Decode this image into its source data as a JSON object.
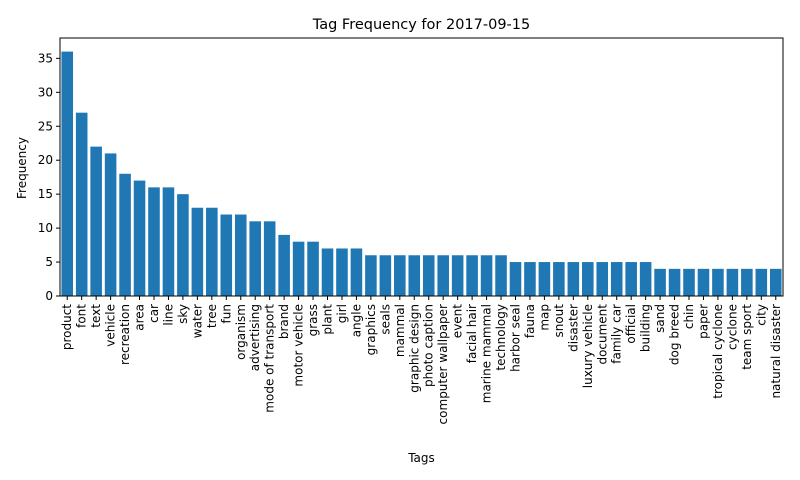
{
  "chart_data": {
    "type": "bar",
    "title": "Tag Frequency for 2017-09-15",
    "xlabel": "Tags",
    "ylabel": "Frequency",
    "ylim": [
      0,
      38
    ],
    "yticks": [
      0,
      5,
      10,
      15,
      20,
      25,
      30,
      35
    ],
    "grid": false,
    "bar_color": "#1f77b4",
    "categories": [
      "product",
      "font",
      "text",
      "vehicle",
      "recreation",
      "area",
      "car",
      "line",
      "sky",
      "water",
      "tree",
      "fun",
      "organism",
      "advertising",
      "mode of transport",
      "brand",
      "motor vehicle",
      "grass",
      "plant",
      "girl",
      "angle",
      "graphics",
      "seals",
      "mammal",
      "graphic design",
      "photo caption",
      "computer wallpaper",
      "event",
      "facial hair",
      "marine mammal",
      "technology",
      "harbor seal",
      "fauna",
      "map",
      "snout",
      "disaster",
      "luxury vehicle",
      "document",
      "family car",
      "official",
      "building",
      "sand",
      "dog breed",
      "chin",
      "paper",
      "tropical cyclone",
      "cyclone",
      "team sport",
      "city",
      "natural disaster"
    ],
    "values": [
      36,
      27,
      22,
      21,
      18,
      17,
      16,
      16,
      15,
      13,
      13,
      12,
      12,
      11,
      11,
      9,
      8,
      8,
      7,
      7,
      7,
      6,
      6,
      6,
      6,
      6,
      6,
      6,
      6,
      6,
      6,
      5,
      5,
      5,
      5,
      5,
      5,
      5,
      5,
      5,
      5,
      4,
      4,
      4,
      4,
      4,
      4,
      4,
      4,
      4
    ]
  }
}
